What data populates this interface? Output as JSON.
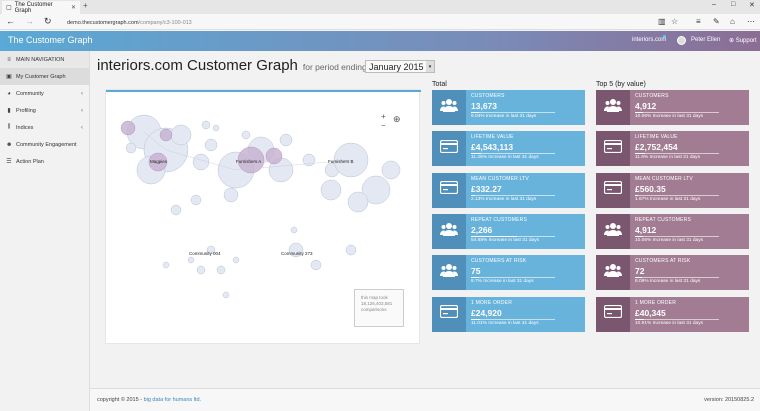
{
  "browser": {
    "tab_title": "The Customer Graph",
    "new_tab": "+",
    "url_domain": "demo.thecustomergraph.com",
    "url_path": "/company/c3-100-013"
  },
  "header": {
    "app_title": "The Customer Graph",
    "org": "interiors.com",
    "user": "Peter Ellen",
    "support": "Support"
  },
  "sidebar": {
    "items": [
      {
        "label": "MAIN NAVIGATION",
        "icon": "menu-icon"
      },
      {
        "label": "My Customer Graph",
        "icon": "image-icon"
      },
      {
        "label": "Community",
        "icon": "pie-icon"
      },
      {
        "label": "Profiling",
        "icon": "bars-icon"
      },
      {
        "label": "Indices",
        "icon": "chart-icon"
      },
      {
        "label": "Community Engagement",
        "icon": "people-icon"
      },
      {
        "label": "Action Plan",
        "icon": "list-icon"
      }
    ]
  },
  "main": {
    "title": "interiors.com Customer Graph",
    "subtitle": "for period ending",
    "period": "January 2015",
    "graph_labels": {
      "magpies": "Magpies",
      "furnishers_a": "Furnishers A",
      "furnishers_b": "Furnishers B",
      "community_004": "Community 004",
      "community_273": "Community 273"
    },
    "map_note": "this map took 18,126,403,581 comparisons"
  },
  "total": {
    "title": "Total",
    "cards": [
      {
        "label": "CUSTOMERS",
        "value": "13,673",
        "note": "9.04% Increase in last 31 days",
        "icon": "users-icon",
        "level": 0.1
      },
      {
        "label": "LIFETIME VALUE",
        "value": "£4,543,113",
        "note": "11.36% Increase in last 31 days",
        "icon": "credit-card-icon",
        "level": 0.12
      },
      {
        "label": "MEAN CUSTOMER LTV",
        "value": "£332.27",
        "note": "2.13% Increase in last 31 days",
        "icon": "credit-card-icon",
        "level": 0.05
      },
      {
        "label": "REPEAT CUSTOMERS",
        "value": "2,266",
        "note": "54.68% Increase in last 31 days",
        "icon": "users-icon",
        "level": 0.55
      },
      {
        "label": "CUSTOMERS AT RISK",
        "value": "75",
        "note": "8.7% Increase in last 31 days",
        "icon": "users-icon",
        "level": 0.09
      },
      {
        "label": "1 MORE ORDER",
        "value": "£24,920",
        "note": "11.01% Increase in last 31 days",
        "icon": "credit-card-icon",
        "level": 0.11
      }
    ]
  },
  "top5": {
    "title": "Top 5 (by value)",
    "cards": [
      {
        "label": "CUSTOMERS",
        "value": "4,912",
        "note": "10.06% Increase in last 31 days",
        "icon": "users-icon",
        "level": 0.1
      },
      {
        "label": "LIFETIME VALUE",
        "value": "£2,752,454",
        "note": "11.9% Increase in last 31 days",
        "icon": "credit-card-icon",
        "level": 0.12
      },
      {
        "label": "MEAN CUSTOMER LTV",
        "value": "£560.35",
        "note": "1.67% Increase in last 31 days",
        "icon": "credit-card-icon",
        "level": 0.04
      },
      {
        "label": "REPEAT CUSTOMERS",
        "value": "4,912",
        "note": "10.06% Increase in last 31 days",
        "icon": "users-icon",
        "level": 0.1
      },
      {
        "label": "CUSTOMERS AT RISK",
        "value": "72",
        "note": "8.09% Increase in last 31 days",
        "icon": "users-icon",
        "level": 0.08
      },
      {
        "label": "1 MORE ORDER",
        "value": "£40,345",
        "note": "10.91% Increase in last 31 days",
        "icon": "credit-card-icon",
        "level": 0.11
      }
    ]
  },
  "footer": {
    "copyright": "copyright © 2015 - ",
    "company": "big data for humans ltd.",
    "version": "version: 20150825.2"
  },
  "colors": {
    "accent_blue": "#68b3dc",
    "accent_purple": "#a17c92"
  }
}
